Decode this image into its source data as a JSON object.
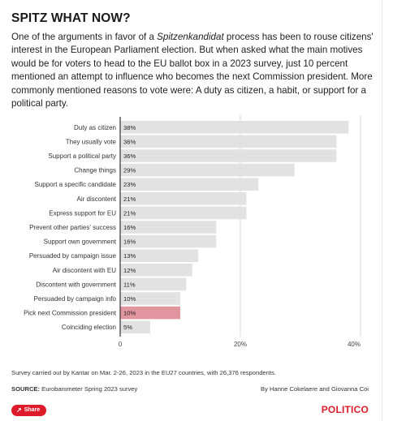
{
  "header": {
    "headline": "SPITZ WHAT NOW?",
    "dek_part1": "One of the arguments in favor of a ",
    "dek_em": "Spitzenkandidat",
    "dek_part2": " process has been to rouse citizens' interest in the European Parliament election. But when asked what the main motives would be for voters to head to the EU ballot box in a 2023 survey, just 10 percent mentioned an attempt to influence who becomes the next Commission president. More commonly mentioned reasons to vote were: A duty as citizen, a habit, or support for a political party."
  },
  "chart_data": {
    "type": "bar",
    "orientation": "horizontal",
    "title": "",
    "xlabel": "",
    "ylabel": "",
    "categories": [
      "Duty as citizen",
      "They usually vote",
      "Support a political party",
      "Change things",
      "Support a specific candidate",
      "Air discontent",
      "Express support for EU",
      "Prevent other parties' success",
      "Support own government",
      "Persuaded by campaign issue",
      "Air discontent with EU",
      "Discontent with government",
      "Persuaded by campaign info",
      "Pick next Commission president",
      "Coinciding election"
    ],
    "values": [
      38,
      36,
      36,
      29,
      23,
      21,
      21,
      16,
      16,
      13,
      12,
      11,
      10,
      10,
      5
    ],
    "value_labels": [
      "38%",
      "36%",
      "36%",
      "29%",
      "23%",
      "21%",
      "21%",
      "16%",
      "16%",
      "13%",
      "12%",
      "11%",
      "10%",
      "10%",
      "5%"
    ],
    "highlight_category": "Pick next Commission president",
    "xlim": [
      0,
      40
    ],
    "xticks": [
      0,
      20,
      40
    ],
    "xtick_labels": [
      "0",
      "20%",
      "40%"
    ],
    "grid": true,
    "colors": {
      "bar": "#e2e2e2",
      "highlight": "#e1969f",
      "grid": "#d9d9d9",
      "axis": "#333333"
    }
  },
  "footer": {
    "note": "Survey carried out by Kantar on Mar. 2-26, 2023 in the EU27 countries, with 26,376 respondents.",
    "source_label": "SOURCE:",
    "source_text": " Eurobarometer Spring 2023 survey",
    "byline": "By Hanne Cokelaere and Giovanna Coi",
    "share_icon": "share-icon",
    "share_label": "Share",
    "logo": "POLITICO",
    "brand_color": "#dd1b2a"
  }
}
